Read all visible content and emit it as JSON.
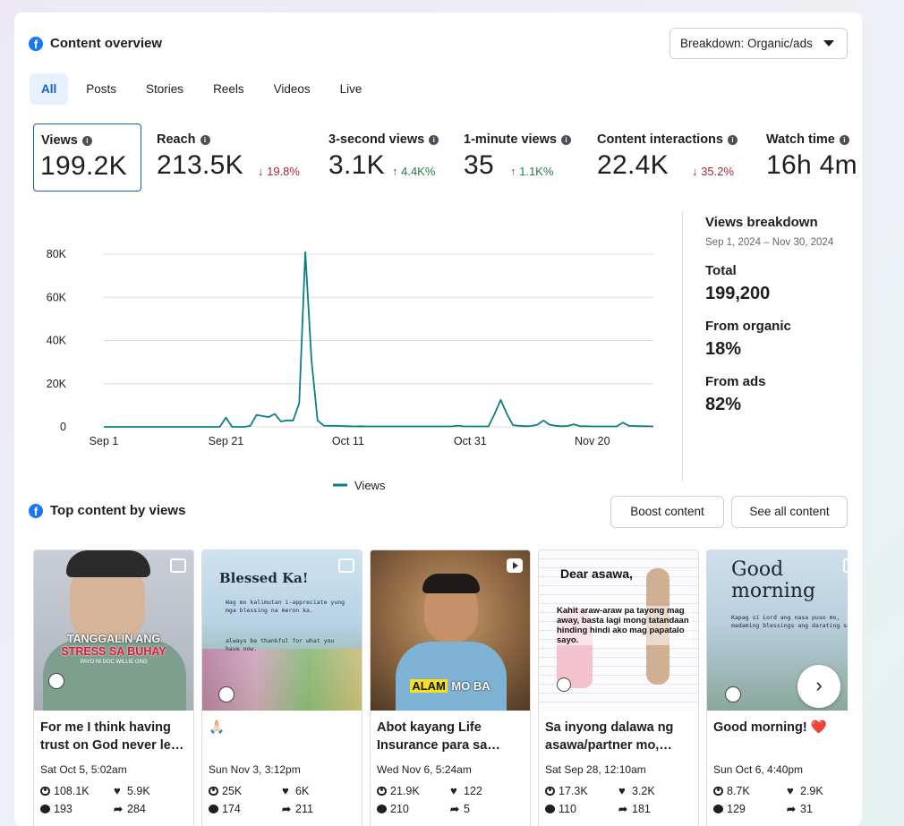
{
  "header": {
    "title": "Content overview",
    "breakdown_label": "Breakdown: Organic/ads"
  },
  "tabs": [
    "All",
    "Posts",
    "Stories",
    "Reels",
    "Videos",
    "Live"
  ],
  "metrics": [
    {
      "label": "Views",
      "value": "199.2K",
      "delta": "",
      "dir": ""
    },
    {
      "label": "Reach",
      "value": "213.5K",
      "delta": "↓ 19.8%",
      "dir": "down"
    },
    {
      "label": "3-second views",
      "value": "3.1K",
      "delta": "↑ 4.4K%",
      "dir": "up"
    },
    {
      "label": "1-minute views",
      "value": "35",
      "delta": "↑ 1.1K%",
      "dir": "up"
    },
    {
      "label": "Content interactions",
      "value": "22.4K",
      "delta": "↓ 35.2%",
      "dir": "down"
    },
    {
      "label": "Watch time",
      "value": "16h 4m",
      "delta": "",
      "dir": ""
    }
  ],
  "chart_data": {
    "type": "line",
    "x_tick_labels": [
      "Sep 1",
      "Sep 21",
      "Oct 11",
      "Oct 31",
      "Nov 20"
    ],
    "y_tick_labels": [
      "0",
      "20K",
      "40K",
      "60K",
      "80K"
    ],
    "ylim": [
      0,
      85000
    ],
    "legend": "Views",
    "series": [
      {
        "name": "Views",
        "color": "#0a7e86",
        "values": [
          0,
          0,
          0,
          0,
          0,
          0,
          0,
          0,
          0,
          0,
          0,
          0,
          0,
          0,
          0,
          0,
          0,
          0,
          0,
          0,
          4300,
          0,
          0,
          0,
          500,
          5500,
          5000,
          4500,
          6000,
          2500,
          3000,
          3000,
          11000,
          81000,
          31000,
          3000,
          600,
          500,
          500,
          400,
          300,
          200,
          300,
          200,
          200,
          200,
          200,
          200,
          200,
          200,
          200,
          200,
          200,
          200,
          200,
          200,
          200,
          200,
          600,
          200,
          200,
          200,
          200,
          200,
          6000,
          12500,
          6000,
          800,
          500,
          300,
          400,
          1000,
          3000,
          1000,
          500,
          300,
          400,
          1200,
          300,
          300,
          200,
          200,
          200,
          200,
          200,
          2000,
          500,
          400,
          300,
          300,
          200
        ]
      }
    ]
  },
  "breakdown": {
    "title": "Views breakdown",
    "date_range": "Sep 1, 2024 – Nov 30, 2024",
    "total_label": "Total",
    "total_value": "199,200",
    "organic_label": "From organic",
    "organic_value": "18%",
    "ads_label": "From ads",
    "ads_value": "82%"
  },
  "top_content": {
    "title": "Top content by views",
    "boost_label": "Boost content",
    "see_all_label": "See all content",
    "cards": [
      {
        "title": "For me I think having trust on God never le…",
        "title2": "",
        "date": "Sat Oct 5, 5:02am",
        "views": "108.1K",
        "likes": "5.9K",
        "comments": "193",
        "shares": "284",
        "thumb_text1": "TANGGALIN ANG",
        "thumb_text2": "STRESS SA BUHAY",
        "thumb_text3": "PAYO NI DOC WILLIE ONG"
      },
      {
        "title": "🙏🏻",
        "title2": "",
        "date": "Sun Nov 3, 3:12pm",
        "views": "25K",
        "likes": "6K",
        "comments": "174",
        "shares": "211",
        "thumb_text1": "Blessed Ka!",
        "thumb_text2": "Wag mo kalimutan i-appreciate yung mga blessing na meron ka.",
        "thumb_text3": "always be thankful for what you have now."
      },
      {
        "title": "Abot kayang Life",
        "title2": "Insurance para sa…",
        "date": "Wed Nov 6, 5:24am",
        "views": "21.9K",
        "likes": "122",
        "comments": "210",
        "shares": "5",
        "thumb_text1": "ALAM",
        "thumb_text2": "MO BA",
        "thumb_text3": ""
      },
      {
        "title": "Sa inyong dalawa ng",
        "title2": "asawa/partner mo,…",
        "date": "Sat Sep 28, 12:10am",
        "views": "17.3K",
        "likes": "3.2K",
        "comments": "110",
        "shares": "181",
        "thumb_text1": "Dear asawa,",
        "thumb_text2": "Kahit araw-araw pa tayong mag away, basta lagi mong tatandaan hinding hindi ako mag papatalo sayo.",
        "thumb_text3": ""
      },
      {
        "title": "Good morning! ❤️",
        "title2": "",
        "date": "Sun Oct 6, 4:40pm",
        "views": "8.7K",
        "likes": "2.9K",
        "comments": "129",
        "shares": "31",
        "thumb_text1": "Good",
        "thumb_text2": "morning",
        "thumb_text3": "Kapag si Lord ang nasa puso mo, madaming blessings ang darating sa'yo."
      }
    ]
  }
}
